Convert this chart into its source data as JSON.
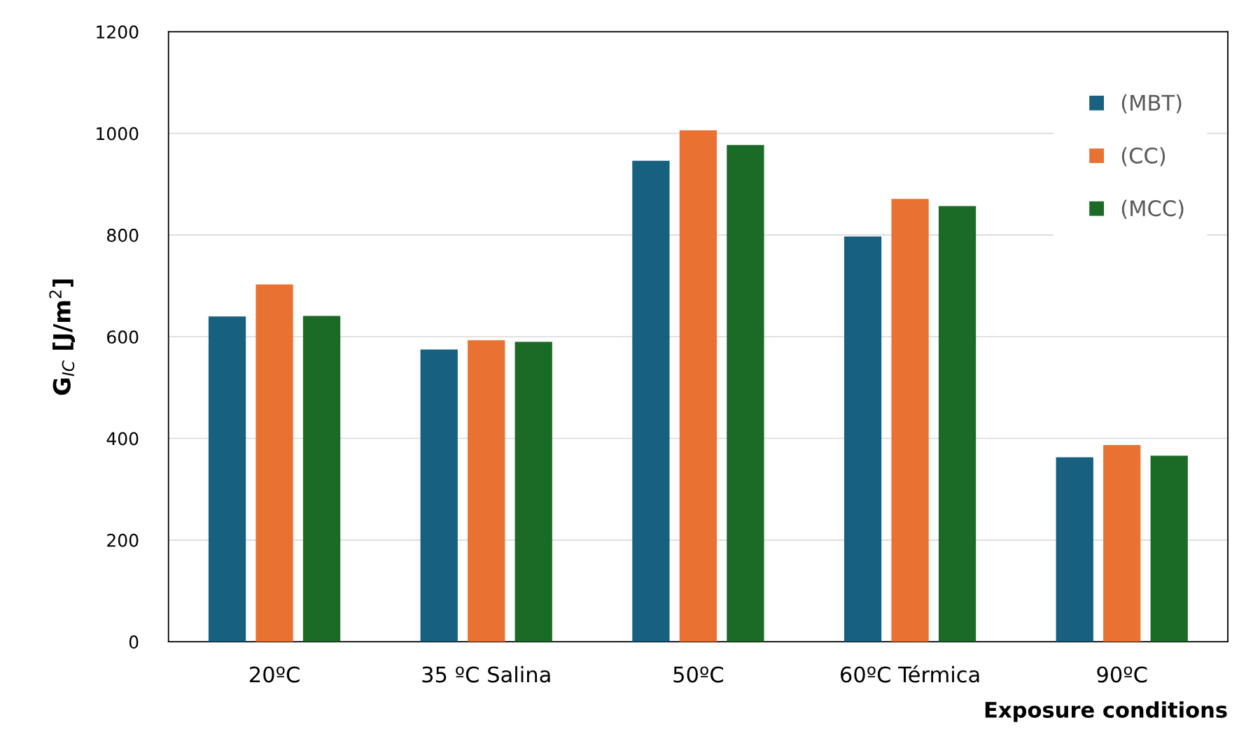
{
  "chart_data": {
    "type": "bar",
    "ylabel": "G$_{IC}$ [J/m$^{2}$]",
    "xlabel": "Exposure conditions",
    "categories": [
      "20ºC",
      "35 ºC Salina",
      "50ºC",
      "60ºC Térmica",
      "90ºC"
    ],
    "series": [
      {
        "name": "(MBT)",
        "color": "#17607f",
        "values": [
          640,
          575,
          946,
          797,
          363
        ]
      },
      {
        "name": "(CC)",
        "color": "#e97132",
        "values": [
          703,
          593,
          1006,
          871,
          387
        ]
      },
      {
        "name": "(MCC)",
        "color": "#1b6b26",
        "values": [
          641,
          590,
          977,
          857,
          366
        ]
      }
    ],
    "ylim": [
      0,
      1200
    ],
    "yticks": [
      0,
      200,
      400,
      600,
      800,
      1000,
      1200
    ],
    "grid": "y",
    "legend": "top right"
  }
}
